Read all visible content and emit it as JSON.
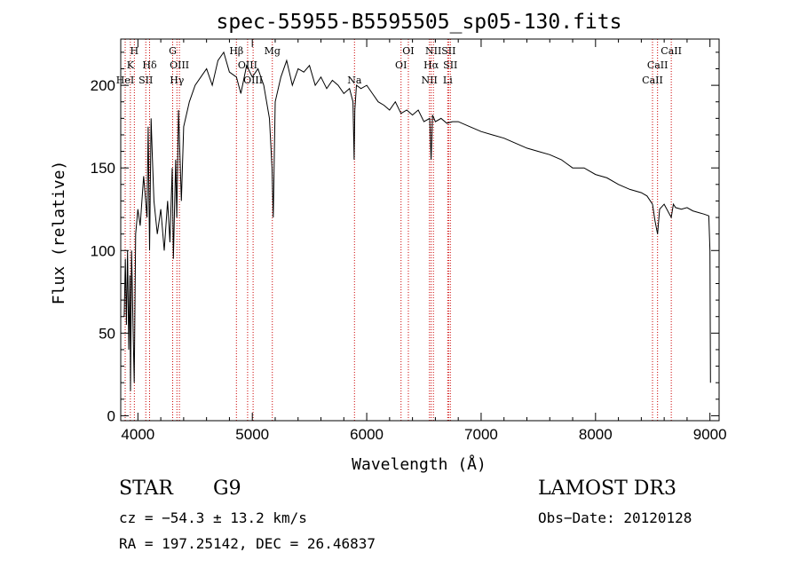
{
  "chart_data": {
    "type": "line",
    "title": "spec-55955-B5595505_sp05-130.fits",
    "xlabel": "Wavelength (Å)",
    "ylabel": "Flux (relative)",
    "xlim": [
      3850,
      9080
    ],
    "ylim": [
      -3,
      228
    ],
    "xticks": [
      4000,
      5000,
      6000,
      7000,
      8000,
      9000
    ],
    "yticks": [
      0,
      50,
      100,
      150,
      200
    ],
    "grid": false,
    "line_color": "#000000",
    "marker_color": "#cc0000",
    "series": [
      {
        "name": "flux",
        "x": [
          3880,
          3890,
          3900,
          3910,
          3920,
          3930,
          3935,
          3945,
          3960,
          3968,
          3980,
          4000,
          4020,
          4050,
          4080,
          4090,
          4102,
          4115,
          4125,
          4140,
          4170,
          4200,
          4230,
          4260,
          4280,
          4300,
          4310,
          4330,
          4340,
          4355,
          4380,
          4400,
          4450,
          4500,
          4550,
          4600,
          4650,
          4700,
          4750,
          4800,
          4861,
          4900,
          4950,
          5000,
          5050,
          5100,
          5150,
          5172,
          5183,
          5200,
          5250,
          5300,
          5350,
          5400,
          5450,
          5500,
          5550,
          5600,
          5650,
          5700,
          5750,
          5800,
          5850,
          5880,
          5890,
          5896,
          5910,
          5950,
          6000,
          6050,
          6100,
          6150,
          6200,
          6250,
          6300,
          6350,
          6400,
          6450,
          6500,
          6550,
          6563,
          6575,
          6600,
          6650,
          6700,
          6750,
          6800,
          6900,
          7000,
          7100,
          7200,
          7300,
          7400,
          7500,
          7600,
          7700,
          7800,
          7900,
          8000,
          8100,
          8200,
          8300,
          8400,
          8450,
          8498,
          8520,
          8542,
          8560,
          8600,
          8662,
          8680,
          8700,
          8750,
          8800,
          8850,
          8900,
          8950,
          8990,
          9000,
          9005
        ],
        "values": [
          60,
          95,
          55,
          100,
          40,
          85,
          15,
          100,
          45,
          20,
          110,
          125,
          115,
          145,
          120,
          175,
          100,
          180,
          160,
          130,
          110,
          125,
          100,
          130,
          105,
          150,
          95,
          155,
          120,
          185,
          130,
          175,
          190,
          200,
          205,
          210,
          200,
          215,
          220,
          208,
          205,
          195,
          212,
          205,
          210,
          200,
          180,
          150,
          120,
          190,
          205,
          215,
          200,
          210,
          208,
          212,
          200,
          205,
          198,
          203,
          200,
          195,
          198,
          190,
          155,
          185,
          200,
          198,
          200,
          195,
          190,
          188,
          185,
          190,
          183,
          185,
          182,
          185,
          178,
          180,
          155,
          182,
          178,
          180,
          177,
          178,
          178,
          175,
          172,
          170,
          168,
          165,
          162,
          160,
          158,
          155,
          150,
          150,
          146,
          144,
          140,
          137,
          135,
          133,
          128,
          118,
          110,
          125,
          128,
          120,
          128,
          126,
          125,
          126,
          124,
          123,
          122,
          121,
          100,
          20
        ]
      }
    ],
    "lines": [
      {
        "name": "H",
        "wave": 3969,
        "row": 1
      },
      {
        "name": "K",
        "wave": 3934,
        "row": 2
      },
      {
        "name": "HeI",
        "wave": 3889,
        "row": 3
      },
      {
        "name": "SII",
        "wave": 4069,
        "row": 3
      },
      {
        "name": "Hδ",
        "wave": 4102,
        "row": 2
      },
      {
        "name": "G",
        "wave": 4304,
        "row": 1
      },
      {
        "name": "OIII",
        "wave": 4363,
        "row": 2
      },
      {
        "name": "Hγ",
        "wave": 4341,
        "row": 3
      },
      {
        "name": "Hβ",
        "wave": 4861,
        "row": 1
      },
      {
        "name": "OIII",
        "wave": 4959,
        "row": 2
      },
      {
        "name": "OIII",
        "wave": 5007,
        "row": 3
      },
      {
        "name": "Mg",
        "wave": 5175,
        "row": 1
      },
      {
        "name": "Na",
        "wave": 5893,
        "row": 3
      },
      {
        "name": "OI",
        "wave": 6300,
        "row": 2
      },
      {
        "name": "OI",
        "wave": 6364,
        "row": 1
      },
      {
        "name": "NII",
        "wave": 6548,
        "row": 3
      },
      {
        "name": "Hα",
        "wave": 6563,
        "row": 2
      },
      {
        "name": "NII",
        "wave": 6583,
        "row": 1
      },
      {
        "name": "SII",
        "wave": 6716,
        "row": 1
      },
      {
        "name": "SII",
        "wave": 6731,
        "row": 2
      },
      {
        "name": "Li",
        "wave": 6708,
        "row": 3
      },
      {
        "name": "CaII",
        "wave": 8498,
        "row": 3
      },
      {
        "name": "CaII",
        "wave": 8542,
        "row": 2
      },
      {
        "name": "CaII",
        "wave": 8662,
        "row": 1
      }
    ]
  },
  "footer": {
    "class_label": "STAR",
    "subclass": "G9",
    "survey": "LAMOST DR3",
    "cz": "cz = −54.3 ± 13.2 km/s",
    "obs_date": "Obs−Date: 20120128",
    "coords": "RA = 197.25142, DEC =  26.46837"
  }
}
